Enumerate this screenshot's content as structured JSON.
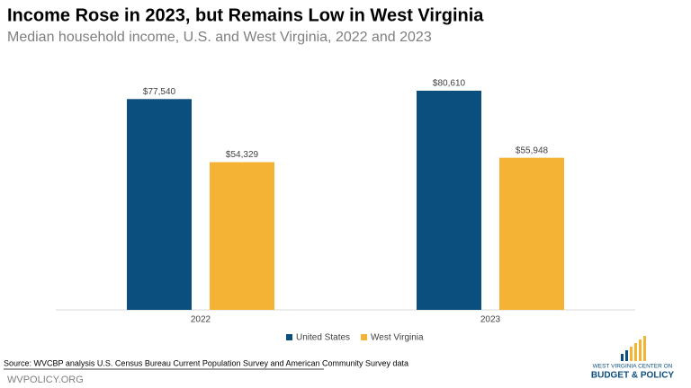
{
  "chart_data": {
    "type": "bar",
    "title": "Income Rose in 2023, but Remains Low in West Virginia",
    "subtitle": "Median household income, U.S. and West Virginia, 2022 and 2023",
    "categories": [
      "2022",
      "2023"
    ],
    "series": [
      {
        "name": "United States",
        "color": "#0b4f7f",
        "values": [
          77540,
          80610
        ],
        "value_labels": [
          "$77,540",
          "$80,610"
        ]
      },
      {
        "name": "West Virginia",
        "color": "#f5b335",
        "values": [
          54329,
          55948
        ],
        "value_labels": [
          "$54,329",
          "$55,948"
        ]
      }
    ],
    "legend": "bottom"
  },
  "source": "Source: WVCBP analysis U.S. Census Bureau Current Population Survey and American Community Survey data",
  "footer": "WVPOLICY.ORG",
  "logo": [
    "WEST VIRGINIA CENTER ON",
    "BUDGET & POLICY"
  ]
}
